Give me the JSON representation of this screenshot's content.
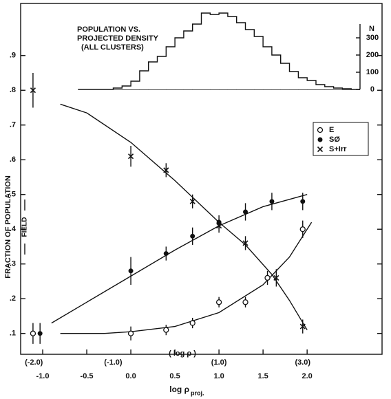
{
  "chart_data": [
    {
      "type": "scatter",
      "ylabel": "FRACTION OF POPULATION",
      "xlabel": "log ρ",
      "xlabel_sub": "proj.",
      "x2label": "( log ρ )",
      "annotation": "FIELD",
      "xlim": [
        -1.25,
        2.85
      ],
      "ylim": [
        0.04,
        1.05
      ],
      "xticks": [
        {
          "value": -1,
          "label": "-1.0"
        },
        -0.5,
        {
          "value": 0,
          "label": "0.0"
        },
        0.5,
        {
          "value": 1,
          "label": "1.0"
        },
        1.5,
        {
          "value": 2,
          "label": "2.0"
        }
      ],
      "x2ticks": [
        {
          "value": -1.1,
          "label": "(-2.0)"
        },
        {
          "value": -0.2,
          "label": "(-1.0)"
        },
        {
          "value": 1.0,
          "label": "(1.0)"
        },
        {
          "value": 1.95,
          "label": "(3.0)"
        }
      ],
      "yticks": [
        {
          "value": 0.1,
          "label": ".1"
        },
        {
          "value": 0.2,
          "label": ".2"
        },
        {
          "value": 0.3,
          "label": ".3"
        },
        {
          "value": 0.4,
          "label": ".4"
        },
        {
          "value": 0.5,
          "label": ".5"
        },
        {
          "value": 0.6,
          "label": ".6"
        },
        {
          "value": 0.7,
          "label": ".7"
        },
        {
          "value": 0.8,
          "label": ".8"
        },
        {
          "value": 0.9,
          "label": ".9"
        }
      ],
      "color": "#111111",
      "series": [
        {
          "name": "E",
          "marker": "open",
          "x": [
            -1.11,
            0.0,
            0.4,
            0.7,
            1.0,
            1.3,
            1.55,
            1.95
          ],
          "values": [
            0.1,
            0.1,
            0.11,
            0.13,
            0.19,
            0.19,
            0.26,
            0.4
          ],
          "errors": [
            0.03,
            0.02,
            0.015,
            0.015,
            0.015,
            0.015,
            0.02,
            0.025
          ],
          "fit_x": [
            -0.8,
            -0.3,
            0.0,
            0.5,
            1.0,
            1.5,
            1.8,
            2.05
          ],
          "fit_values": [
            0.1,
            0.1,
            0.105,
            0.12,
            0.16,
            0.24,
            0.32,
            0.42
          ]
        },
        {
          "name": "SØ",
          "marker": "filled",
          "x": [
            -1.03,
            0.0,
            0.4,
            0.7,
            1.0,
            1.3,
            1.6,
            1.95
          ],
          "values": [
            0.1,
            0.28,
            0.33,
            0.38,
            0.42,
            0.45,
            0.48,
            0.48
          ],
          "errors": [
            0.03,
            0.04,
            0.02,
            0.025,
            0.02,
            0.025,
            0.025,
            0.025
          ],
          "fit_x": [
            -0.9,
            -0.5,
            0.0,
            0.5,
            1.0,
            1.5,
            2.0
          ],
          "fit_values": [
            0.13,
            0.19,
            0.265,
            0.34,
            0.41,
            0.465,
            0.5
          ]
        },
        {
          "name": "S+Irr",
          "marker": "cross",
          "x": [
            -1.11,
            0.0,
            0.4,
            0.7,
            1.0,
            1.3,
            1.65,
            1.95
          ],
          "values": [
            0.8,
            0.61,
            0.57,
            0.48,
            0.41,
            0.36,
            0.26,
            0.12
          ],
          "errors": [
            0.05,
            0.03,
            0.02,
            0.02,
            0.02,
            0.02,
            0.025,
            0.02
          ],
          "fit_x": [
            -0.8,
            -0.5,
            0.0,
            0.5,
            1.0,
            1.3,
            1.6,
            1.8,
            2.0
          ],
          "fit_values": [
            0.76,
            0.735,
            0.65,
            0.54,
            0.42,
            0.355,
            0.27,
            0.195,
            0.11
          ]
        }
      ]
    },
    {
      "type": "histogram",
      "title_lines": [
        "POPULATION VS.",
        "PROJECTED DENSITY",
        "(ALL CLUSTERS)"
      ],
      "ylabel": "N",
      "xlim": [
        -0.6,
        2.6
      ],
      "ylim": [
        0,
        460
      ],
      "yticks": [
        0,
        100,
        200,
        300
      ],
      "color": "#111111",
      "bins": [
        -0.2,
        -0.1,
        0.0,
        0.1,
        0.2,
        0.3,
        0.4,
        0.5,
        0.6,
        0.7,
        0.8,
        0.9,
        1.0,
        1.1,
        1.2,
        1.3,
        1.4,
        1.5,
        1.6,
        1.7,
        1.8,
        1.9,
        2.0,
        2.1,
        2.2,
        2.3,
        2.4,
        2.5
      ],
      "values": [
        8,
        20,
        48,
        108,
        160,
        192,
        248,
        300,
        340,
        380,
        444,
        436,
        444,
        424,
        388,
        348,
        308,
        248,
        200,
        152,
        104,
        68,
        52,
        28,
        16,
        8,
        4
      ]
    }
  ]
}
